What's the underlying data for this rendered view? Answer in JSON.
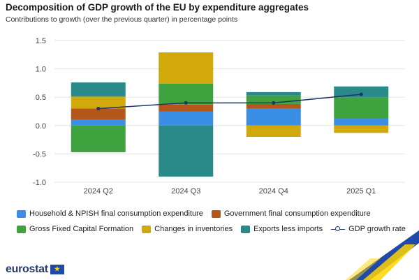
{
  "title": "Decomposition of GDP growth of the EU by expenditure aggregates",
  "subtitle": "Contributions to growth (over the previous quarter) in percentage points",
  "chart_data": {
    "type": "bar",
    "stacked": true,
    "categories": [
      "2024 Q2",
      "2024 Q3",
      "2024 Q4",
      "2025 Q1"
    ],
    "ylim": [
      -1.0,
      1.5
    ],
    "yticks": [
      "1.5",
      "1.0",
      "0.5",
      "0.0",
      "-0.5",
      "-1.0"
    ],
    "ytick_values": [
      1.5,
      1.0,
      0.5,
      0.0,
      -0.5,
      -1.0
    ],
    "grid": true,
    "legend_position": "bottom",
    "series": [
      {
        "name": "Household & NPISH final consumption expenditure",
        "color": "#3a8ee6",
        "values": [
          0.1,
          0.25,
          0.3,
          0.12
        ]
      },
      {
        "name": "Government final consumption expenditure",
        "color": "#b5561b",
        "values": [
          0.2,
          0.12,
          0.08,
          0.0
        ]
      },
      {
        "name": "Gross Fixed Capital Formation",
        "color": "#3ea33e",
        "values": [
          -0.47,
          0.37,
          0.15,
          0.38
        ]
      },
      {
        "name": "Changes in inventories",
        "color": "#d1a90d",
        "values": [
          0.21,
          0.55,
          -0.2,
          -0.13
        ]
      },
      {
        "name": "Exports less imports",
        "color": "#2a8a8a",
        "values": [
          0.25,
          -0.9,
          0.06,
          0.19
        ]
      }
    ],
    "line": {
      "name": "GDP growth rate",
      "color": "#1f3466",
      "values": [
        0.3,
        0.4,
        0.4,
        0.55
      ]
    }
  },
  "logo_text": "eurostat"
}
